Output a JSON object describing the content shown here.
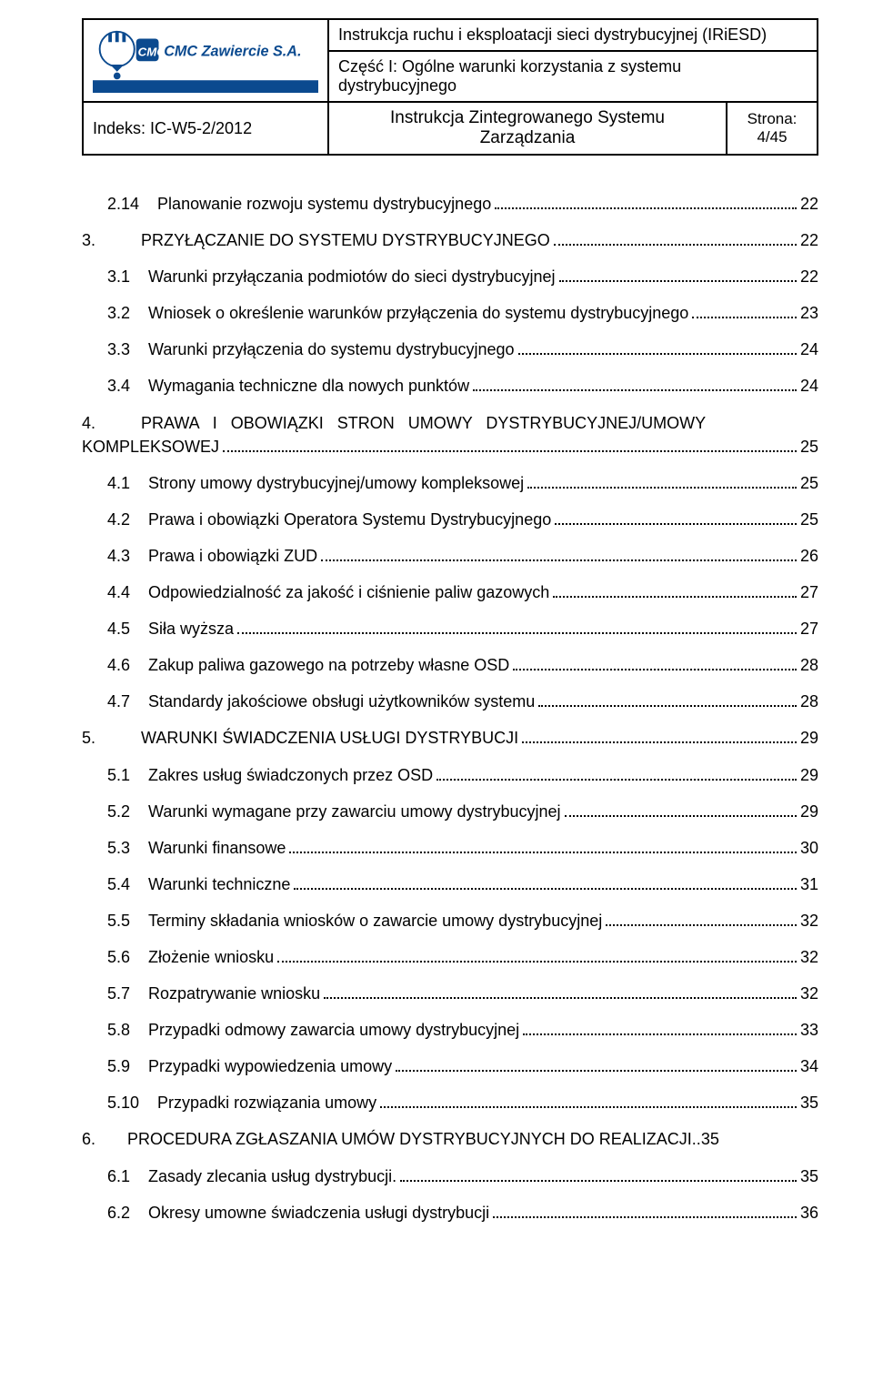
{
  "header": {
    "main_title": "Instrukcja ruchu i eksploatacji sieci dystrybucyjnej (IRiESD)",
    "part_line1": "Część I: Ogólne warunki korzystania z systemu",
    "part_line2": "dystrybucyjnego",
    "index_label": "Indeks: IC-W5-2/2012",
    "system_line1": "Instrukcja Zintegrowanego Systemu",
    "system_line2": "Zarządzania",
    "page_label": "Strona:",
    "page_value": "4/45",
    "logo_text": "CMC Zawiercie S.A."
  },
  "toc": [
    {
      "num": "2.14",
      "title": "Planowanie rozwoju systemu dystrybucyjnego",
      "page": "22",
      "indent": 1
    },
    {
      "num": "3.",
      "title": "PRZYŁĄCZANIE DO SYSTEMU DYSTRYBUCYJNEGO",
      "page": "22",
      "indent": 0
    },
    {
      "num": "3.1",
      "title": "Warunki przyłączania podmiotów do sieci dystrybucyjnej",
      "page": "22",
      "indent": 1
    },
    {
      "num": "3.2",
      "title": "Wniosek o określenie warunków przyłączenia do systemu dystrybucyjnego",
      "page": "23",
      "indent": 1
    },
    {
      "num": "3.3",
      "title": "Warunki przyłączenia do systemu dystrybucyjnego",
      "page": "24",
      "indent": 1
    },
    {
      "num": "3.4",
      "title": "Wymagania techniczne dla nowych punktów",
      "page": "24",
      "indent": 1
    },
    {
      "type": "multi",
      "num": "4.",
      "line1": "PRAWA   I   OBOWIĄZKI   STRON   UMOWY   DYSTRYBUCYJNEJ/UMOWY",
      "line2": "KOMPLEKSOWEJ",
      "page": "25",
      "indent": 0
    },
    {
      "num": "4.1",
      "title": "Strony umowy dystrybucyjnej/umowy kompleksowej",
      "page": "25",
      "indent": 1
    },
    {
      "num": "4.2",
      "title": "Prawa i obowiązki Operatora Systemu Dystrybucyjnego",
      "page": "25",
      "indent": 1
    },
    {
      "num": "4.3",
      "title": "Prawa i obowiązki ZUD",
      "page": "26",
      "indent": 1
    },
    {
      "num": "4.4",
      "title": "Odpowiedzialność za jakość i ciśnienie paliw gazowych",
      "page": "27",
      "indent": 1
    },
    {
      "num": "4.5",
      "title": "Siła wyższa",
      "page": "27",
      "indent": 1
    },
    {
      "num": "4.6",
      "title": "Zakup paliwa gazowego na potrzeby własne OSD",
      "page": "28",
      "indent": 1
    },
    {
      "num": "4.7",
      "title": "Standardy jakościowe obsługi użytkowników systemu",
      "page": "28",
      "indent": 1
    },
    {
      "num": "5.",
      "title": "WARUNKI ŚWIADCZENIA USŁUGI DYSTRYBUCJI",
      "page": "29",
      "indent": 0
    },
    {
      "num": "5.1",
      "title": "Zakres usług świadczonych przez OSD",
      "page": "29",
      "indent": 1
    },
    {
      "num": "5.2",
      "title": "Warunki wymagane przy zawarciu umowy dystrybucyjnej",
      "page": "29",
      "indent": 1
    },
    {
      "num": "5.3",
      "title": "Warunki finansowe",
      "page": "30",
      "indent": 1
    },
    {
      "num": "5.4",
      "title": "Warunki techniczne",
      "page": "31",
      "indent": 1
    },
    {
      "num": "5.5",
      "title": "Terminy składania wniosków o zawarcie umowy dystrybucyjnej",
      "page": "32",
      "indent": 1
    },
    {
      "num": "5.6",
      "title": "Złożenie wniosku",
      "page": "32",
      "indent": 1
    },
    {
      "num": "5.7",
      "title": "Rozpatrywanie wniosku",
      "page": "32",
      "indent": 1
    },
    {
      "num": "5.8",
      "title": "Przypadki odmowy zawarcia umowy dystrybucyjnej",
      "page": "33",
      "indent": 1
    },
    {
      "num": "5.9",
      "title": "Przypadki wypowiedzenia umowy",
      "page": "34",
      "indent": 1
    },
    {
      "num": "5.10",
      "title": "Przypadki rozwiązania umowy",
      "page": "35",
      "indent": 1
    },
    {
      "num": "6.",
      "title": "PROCEDURA ZGŁASZANIA UMÓW DYSTRYBUCYJNYCH DO REALIZACJI",
      "page": "35",
      "indent": 0,
      "tight": true
    },
    {
      "num": "6.1",
      "title": "Zasady zlecania usług dystrybucji.",
      "page": "35",
      "indent": 1
    },
    {
      "num": "6.2",
      "title": "Okresy umowne świadczenia usługi dystrybucji",
      "page": "36",
      "indent": 1
    }
  ],
  "colors": {
    "logo_blue": "#0b4a8f",
    "text": "#000000",
    "bg": "#ffffff"
  }
}
